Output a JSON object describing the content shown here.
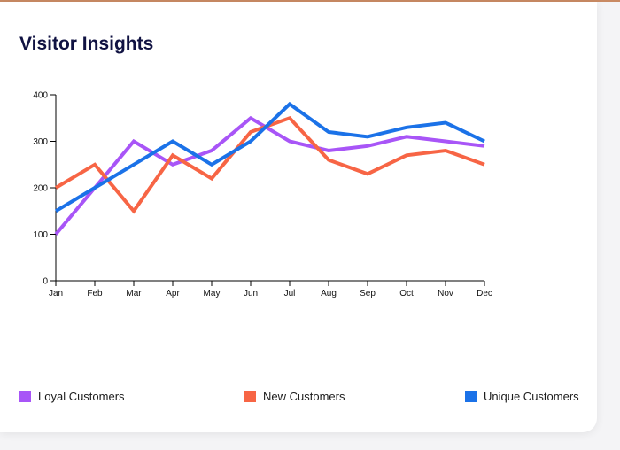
{
  "page": {
    "title": "Visitor Insights"
  },
  "chart_data": {
    "type": "line",
    "categories": [
      "Jan",
      "Feb",
      "Mar",
      "Apr",
      "May",
      "Jun",
      "Jul",
      "Aug",
      "Sep",
      "Oct",
      "Nov",
      "Dec"
    ],
    "ylim": [
      0,
      400
    ],
    "yticks": [
      0,
      100,
      200,
      300,
      400
    ],
    "grid": false,
    "legend_position": "bottom",
    "series": [
      {
        "name": "Loyal Customers",
        "color": "#a855f7",
        "values": [
          100,
          200,
          300,
          250,
          280,
          350,
          300,
          280,
          290,
          310,
          300,
          290
        ]
      },
      {
        "name": "New Customers",
        "color": "#f76545",
        "values": [
          200,
          250,
          150,
          270,
          220,
          320,
          350,
          260,
          230,
          270,
          280,
          250
        ]
      },
      {
        "name": "Unique Customers",
        "color": "#1b72e8",
        "values": [
          150,
          200,
          250,
          300,
          250,
          300,
          380,
          320,
          310,
          330,
          340,
          300
        ]
      }
    ]
  }
}
